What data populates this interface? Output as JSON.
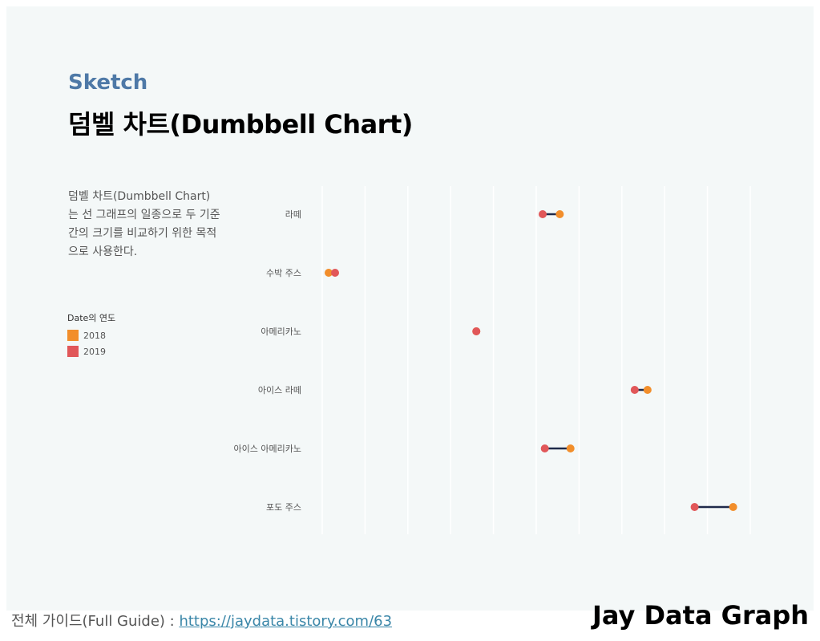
{
  "header": {
    "subtitle": "Sketch",
    "title": "덤벨 차트(Dumbbell Chart)"
  },
  "description": "덤벨 차트(Dumbbell Chart)는 선 그래프의 일종으로 두 기준 간의 크기를 비교하기 위한 목적으로 사용한다.",
  "legend": {
    "title": "Date의 연도",
    "items": [
      {
        "label": "2018",
        "color": "#f28e2b"
      },
      {
        "label": "2019",
        "color": "#e15759"
      }
    ]
  },
  "footer": {
    "guide_label": "전체 가이드(Full Guide) : ",
    "guide_link": "https://jaydata.tistory.com/63",
    "brand": "Jay Data Graph"
  },
  "chart_data": {
    "type": "dumbbell",
    "orientation": "horizontal",
    "categories": [
      "라떼",
      "수박 주스",
      "아메리카노",
      "아이스 라떼",
      "아이스 아메리카노",
      "포도 주스"
    ],
    "series": [
      {
        "name": "2018",
        "color": "#f28e2b",
        "values": [
          5.55,
          0.15,
          3.6,
          7.6,
          5.8,
          9.6
        ]
      },
      {
        "name": "2019",
        "color": "#e15759",
        "values": [
          5.15,
          0.3,
          3.6,
          7.3,
          5.2,
          8.7
        ]
      }
    ],
    "connector_color": "#1f2a4a",
    "xlim": [
      0,
      10
    ],
    "grid": true
  }
}
